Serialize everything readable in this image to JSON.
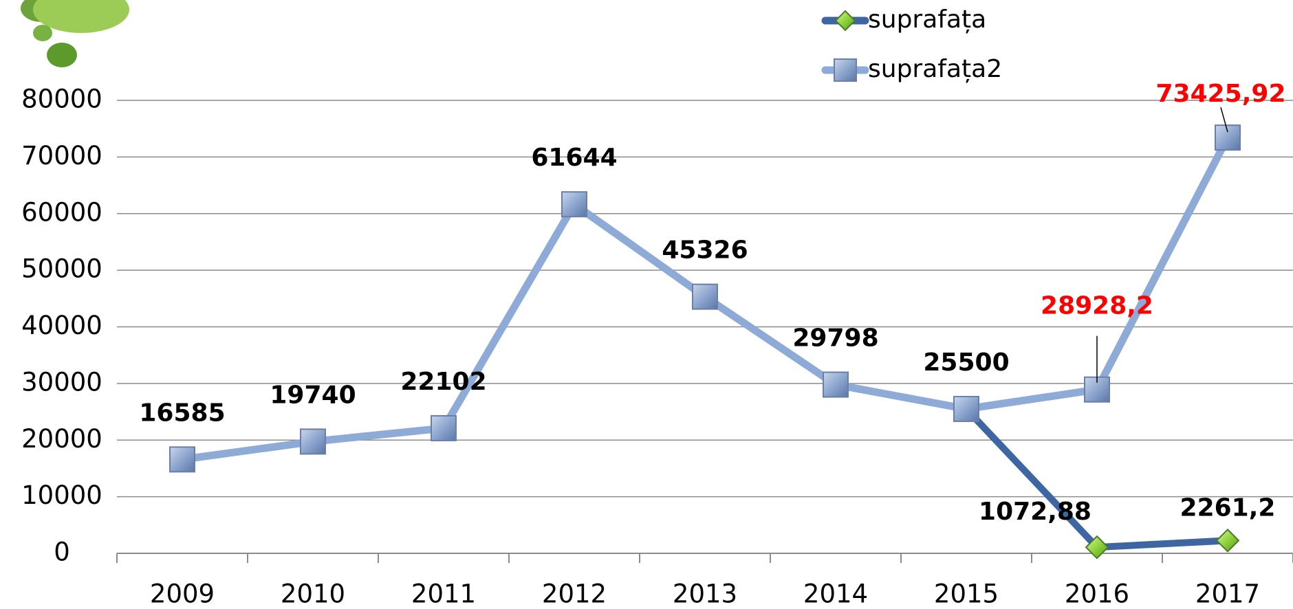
{
  "chart_data": {
    "type": "line",
    "categories": [
      "2009",
      "2010",
      "2011",
      "2012",
      "2013",
      "2014",
      "2015",
      "2016",
      "2017"
    ],
    "series": [
      {
        "name": "suprafața2",
        "color": "#8eaad6",
        "marker": "square",
        "values": [
          16585,
          19740,
          22102,
          61644,
          45326,
          29798,
          25500,
          28928.2,
          73425.92
        ],
        "value_labels": [
          "16585",
          "19740",
          "22102",
          "61644",
          "45326",
          "29798",
          "25500",
          "28928,2",
          "73425,92"
        ],
        "value_label_colors": [
          "#000000",
          "#000000",
          "#000000",
          "#000000",
          "#000000",
          "#000000",
          "#000000",
          "#ff0000",
          "#ff0000"
        ]
      },
      {
        "name": "suprafața",
        "color": "#3d66a3",
        "marker": "diamond",
        "values": [
          null,
          null,
          null,
          null,
          null,
          null,
          25500,
          1072.88,
          2261.2
        ],
        "value_labels": [
          null,
          null,
          null,
          null,
          null,
          null,
          null,
          "1072,88",
          "2261,2"
        ],
        "value_label_colors": [
          null,
          null,
          null,
          null,
          null,
          null,
          null,
          "#000000",
          "#000000"
        ]
      }
    ],
    "ylim": [
      0,
      80000
    ],
    "yticks": [
      0,
      10000,
      20000,
      30000,
      40000,
      50000,
      60000,
      70000,
      80000
    ],
    "grid": true,
    "legend": "top"
  }
}
